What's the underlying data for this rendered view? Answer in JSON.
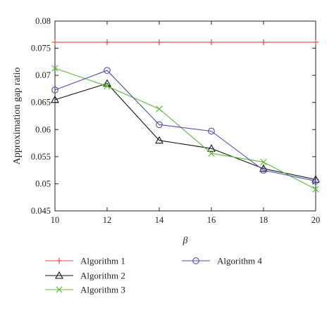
{
  "chart_data": {
    "type": "line",
    "title": "",
    "xlabel": "β",
    "ylabel": "Approximation gap ratio",
    "x": [
      10,
      12,
      14,
      16,
      18,
      20
    ],
    "xlim": [
      10,
      20
    ],
    "ylim": [
      0.045,
      0.08
    ],
    "xticks": [
      "10",
      "12",
      "14",
      "16",
      "18",
      "20"
    ],
    "yticks": [
      "0.045",
      "0.05",
      "0.055",
      "0.06",
      "0.065",
      "0.07",
      "0.075",
      "0.08"
    ],
    "grid": false,
    "legend_position": "below-plot",
    "series": [
      {
        "name": "Algorithm 1",
        "marker": "plus",
        "color": "#e8473c",
        "values": [
          0.0761,
          0.0761,
          0.0761,
          0.0761,
          0.0761,
          0.0761
        ]
      },
      {
        "name": "Algorithm 2",
        "marker": "triangle",
        "color": "#111111",
        "values": [
          0.0655,
          0.0685,
          0.058,
          0.0565,
          0.0528,
          0.0508
        ]
      },
      {
        "name": "Algorithm 3",
        "marker": "x",
        "color": "#5cbd3a",
        "values": [
          0.0713,
          0.068,
          0.0638,
          0.0556,
          0.054,
          0.049
        ]
      },
      {
        "name": "Algorithm 4",
        "marker": "circle",
        "color": "#4d4db3",
        "values": [
          0.0673,
          0.0709,
          0.0609,
          0.0597,
          0.0525,
          0.0505
        ]
      }
    ]
  }
}
